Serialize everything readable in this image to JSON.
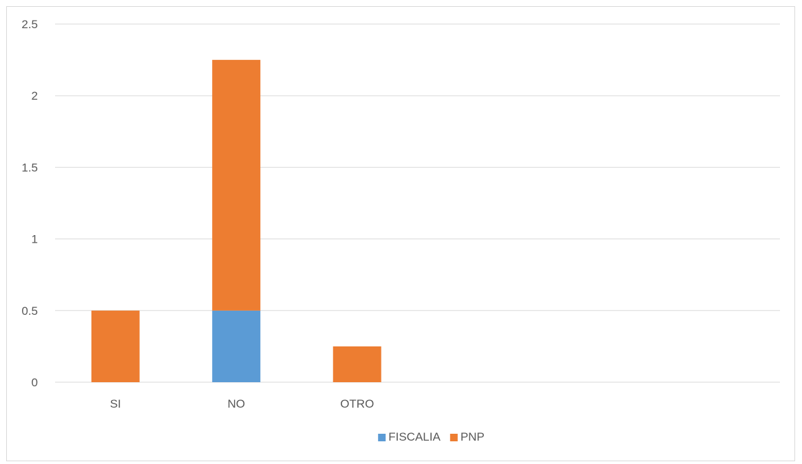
{
  "chart_data": {
    "type": "bar",
    "stacked": true,
    "categories": [
      "SI",
      "NO",
      "OTRO",
      "",
      "",
      ""
    ],
    "series": [
      {
        "name": "FISCALIA",
        "values": [
          0,
          0.5,
          0,
          0,
          0,
          0
        ],
        "color": "#5b9bd5"
      },
      {
        "name": "PNP",
        "values": [
          0.5,
          1.75,
          0.25,
          0,
          0,
          0
        ],
        "color": "#ed7d31"
      }
    ],
    "ylim": [
      0,
      2.5
    ],
    "yticks": [
      0,
      0.5,
      1,
      1.5,
      2,
      2.5
    ],
    "ytick_labels": [
      "0",
      "0.5",
      "1",
      "1.5",
      "2",
      "2.5"
    ],
    "grid": true,
    "legend": "bottom",
    "title": "",
    "xlabel": "",
    "ylabel": ""
  }
}
